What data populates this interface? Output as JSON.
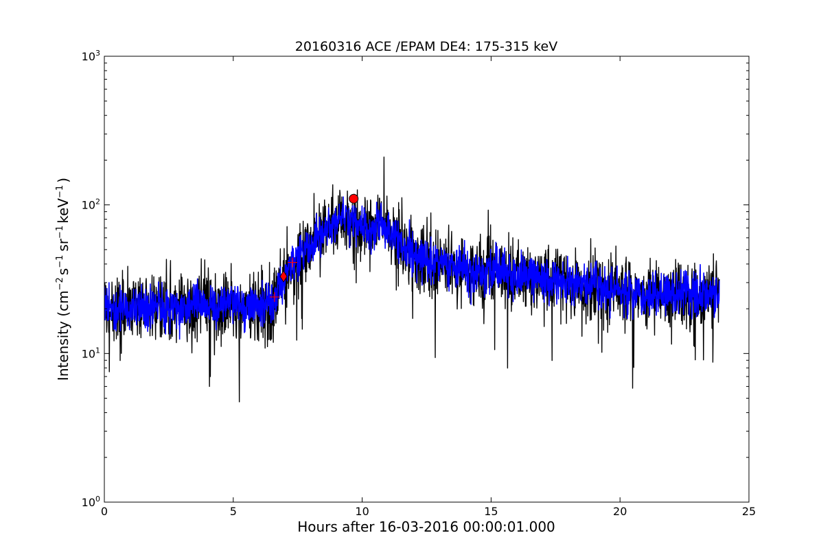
{
  "chart_data": {
    "type": "line",
    "title": "20160316 ACE /EPAM DE4: 175-315 keV",
    "xlabel": "Hours after 16-03-2016 00:00:01.000",
    "ylabel": {
      "prefix": "Intensity (cm",
      "exp1": "−2",
      "s": "s",
      "exp2": "−1",
      "sr": "sr",
      "exp3": "−1",
      "kev": "keV",
      "exp4": "−1",
      "suffix": ")"
    },
    "xlim": [
      0,
      25
    ],
    "ylim": [
      1,
      1000
    ],
    "yscale": "log",
    "grid": false,
    "xticks": [
      {
        "value": 0,
        "label": "0"
      },
      {
        "value": 5,
        "label": "5"
      },
      {
        "value": 10,
        "label": "10"
      },
      {
        "value": 15,
        "label": "15"
      },
      {
        "value": 20,
        "label": "20"
      },
      {
        "value": 25,
        "label": "25"
      }
    ],
    "yticks": [
      {
        "value": 1,
        "base": "10",
        "exp": "0"
      },
      {
        "value": 10,
        "base": "10",
        "exp": "1"
      },
      {
        "value": 100,
        "base": "10",
        "exp": "2"
      },
      {
        "value": 1000,
        "base": "10",
        "exp": "3"
      }
    ],
    "series": [
      {
        "color": "#000000",
        "x": [
          0,
          0.5,
          1,
          1.5,
          2,
          2.5,
          3,
          3.5,
          4,
          4.5,
          5,
          5.5,
          6,
          6.5,
          6.9,
          7.3,
          7.7,
          8,
          8.5,
          9,
          9.3,
          9.7,
          10,
          10.3,
          10.7,
          11,
          11.5,
          12,
          12.5,
          13,
          13.5,
          14,
          14.5,
          15,
          15.5,
          16,
          16.5,
          17,
          17.5,
          18,
          18.5,
          19,
          19.5,
          20,
          20.5,
          21,
          21.5,
          22,
          22.5,
          23,
          23.5,
          23.85
        ],
        "y": [
          21,
          20,
          20,
          21,
          21,
          20,
          20,
          21,
          21,
          21,
          21,
          21,
          21,
          22,
          30,
          40,
          48,
          55,
          65,
          80,
          82,
          80,
          72,
          68,
          72,
          70,
          55,
          47,
          43,
          40,
          38,
          37,
          36,
          36,
          36,
          34,
          33,
          32,
          31,
          30,
          29,
          28,
          27,
          26,
          25,
          25,
          25,
          25,
          25,
          25,
          25,
          25
        ]
      },
      {
        "color": "#0000ff",
        "x": [
          0,
          0.5,
          1,
          1.5,
          2,
          2.5,
          3,
          3.5,
          4,
          4.5,
          5,
          5.5,
          6,
          6.5,
          6.9,
          7.3,
          7.7,
          8,
          8.5,
          9,
          9.3,
          9.7,
          10,
          10.3,
          10.7,
          11,
          11.5,
          12,
          12.5,
          13,
          13.5,
          14,
          14.5,
          15,
          15.5,
          16,
          16.5,
          17,
          17.5,
          18,
          18.5,
          19,
          19.5,
          20,
          20.5,
          21,
          21.5,
          22,
          22.5,
          23,
          23.5,
          23.85
        ],
        "y": [
          21,
          20,
          20,
          21,
          21,
          20,
          20,
          21,
          21,
          21,
          21,
          21,
          21,
          22,
          30,
          40,
          48,
          55,
          65,
          80,
          82,
          80,
          72,
          68,
          72,
          70,
          55,
          47,
          43,
          40,
          38,
          37,
          36,
          36,
          36,
          34,
          33,
          32,
          31,
          30,
          29,
          28,
          27,
          26,
          25,
          25,
          25,
          25,
          25,
          25,
          25,
          25
        ]
      }
    ],
    "markers": [
      {
        "shape": "plus",
        "color": "#ff0000",
        "x": 6.6,
        "y": 24
      },
      {
        "shape": "diamond",
        "color": "#ff0000",
        "x": 6.95,
        "y": 33
      },
      {
        "shape": "plus",
        "color": "#ff0000",
        "x": 7.3,
        "y": 41
      },
      {
        "shape": "circle",
        "color": "#ff0000",
        "x": 9.67,
        "y": 110
      }
    ]
  }
}
